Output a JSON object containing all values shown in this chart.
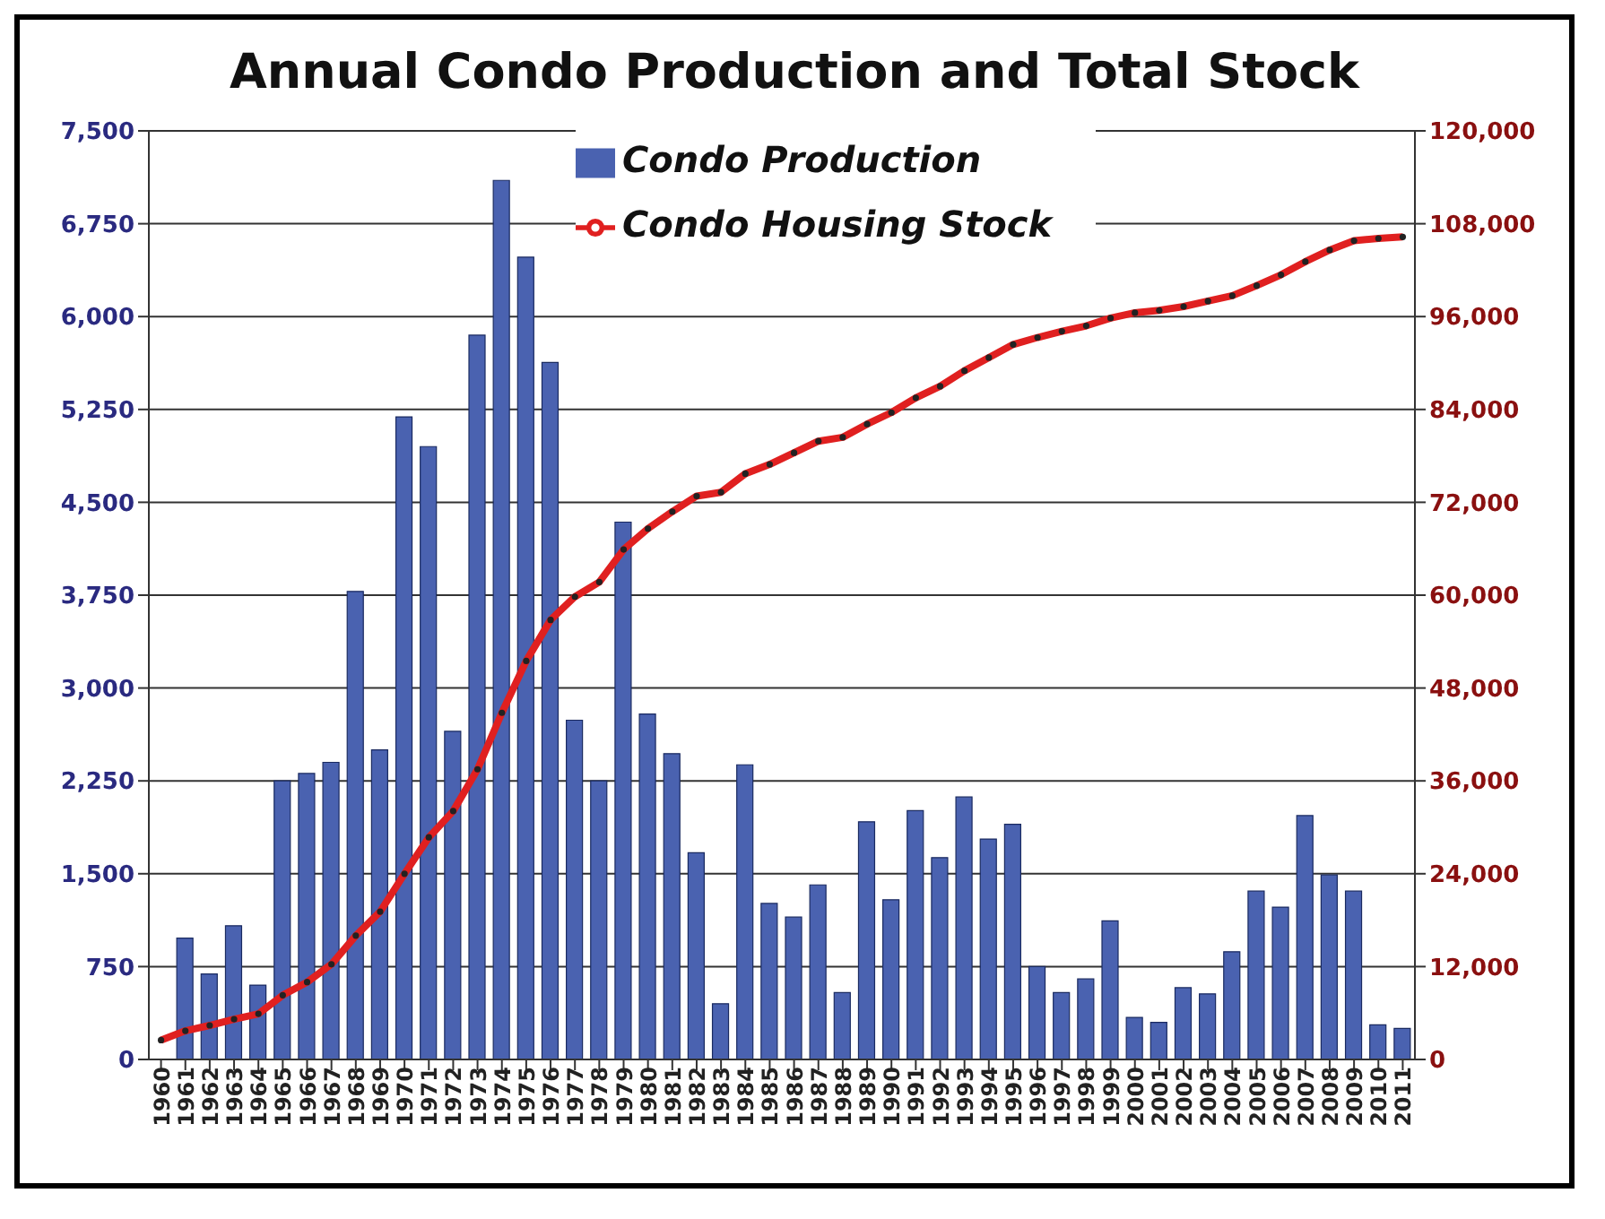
{
  "chart_data": {
    "type": "bar",
    "title": "Annual Condo Production and Total Stock",
    "categories": [
      "1960",
      "1961",
      "1962",
      "1963",
      "1964",
      "1965",
      "1966",
      "1967",
      "1968",
      "1969",
      "1970",
      "1971",
      "1972",
      "1973",
      "1974",
      "1975",
      "1976",
      "1977",
      "1978",
      "1979",
      "1980",
      "1981",
      "1982",
      "1983",
      "1984",
      "1985",
      "1986",
      "1987",
      "1988",
      "1989",
      "1990",
      "1991",
      "1992",
      "1993",
      "1994",
      "1995",
      "1996",
      "1997",
      "1998",
      "1999",
      "2000",
      "2001",
      "2002",
      "2003",
      "2004",
      "2005",
      "2006",
      "2007",
      "2008",
      "2009",
      "2010",
      "2011"
    ],
    "series": [
      {
        "name": "Condo Production",
        "color": "#4a62b0",
        "values": [
          0,
          980,
          690,
          1080,
          600,
          2250,
          2310,
          2400,
          3780,
          2500,
          5190,
          4950,
          2650,
          5850,
          7100,
          6480,
          5630,
          2740,
          2250,
          4340,
          2790,
          2470,
          1670,
          450,
          2380,
          1260,
          1150,
          1410,
          540,
          1920,
          1290,
          2010,
          1630,
          2120,
          1780,
          1900,
          750,
          540,
          650,
          1120,
          340,
          300,
          580,
          530,
          870,
          1360,
          1230,
          1970,
          1490,
          1360,
          280,
          250
        ]
      },
      {
        "name": "Condo Housing Stock",
        "type": "line",
        "axis": "y2",
        "color": "#e02020",
        "marker": "circle",
        "values": [
          2500,
          3700,
          4400,
          5200,
          5900,
          8300,
          10000,
          12300,
          16000,
          19100,
          24000,
          28700,
          32100,
          37500,
          44800,
          51500,
          56800,
          59800,
          61700,
          65900,
          68600,
          70800,
          72800,
          73300,
          75700,
          76900,
          78400,
          79900,
          80400,
          82100,
          83600,
          85500,
          87000,
          89000,
          90700,
          92400,
          93300,
          94100,
          94800,
          95800,
          96500,
          96800,
          97300,
          98000,
          98700,
          100000,
          101400,
          103100,
          104600,
          105800,
          106100,
          106300
        ]
      }
    ],
    "ylim": [
      0,
      7500
    ],
    "yticks": [
      {
        "value": 0,
        "label": "0"
      },
      {
        "value": 750,
        "label": "750"
      },
      {
        "value": 1500,
        "label": "1,500"
      },
      {
        "value": 2250,
        "label": "2,250"
      },
      {
        "value": 3000,
        "label": "3,000"
      },
      {
        "value": 3750,
        "label": "3,750"
      },
      {
        "value": 4500,
        "label": "4,500"
      },
      {
        "value": 5250,
        "label": "5,250"
      },
      {
        "value": 6000,
        "label": "6,000"
      },
      {
        "value": 6750,
        "label": "6,750"
      },
      {
        "value": 7500,
        "label": "7,500"
      }
    ],
    "y2lim": [
      0,
      120000
    ],
    "y2ticks": [
      {
        "value": 0,
        "label": "0"
      },
      {
        "value": 12000,
        "label": "12,000"
      },
      {
        "value": 24000,
        "label": "24,000"
      },
      {
        "value": 36000,
        "label": "36,000"
      },
      {
        "value": 48000,
        "label": "48,000"
      },
      {
        "value": 60000,
        "label": "60,000"
      },
      {
        "value": 72000,
        "label": "72,000"
      },
      {
        "value": 84000,
        "label": "84,000"
      },
      {
        "value": 96000,
        "label": "96,000"
      },
      {
        "value": 108000,
        "label": "108,000"
      },
      {
        "value": 120000,
        "label": "120,000"
      }
    ],
    "grid": "y",
    "legend": "top"
  }
}
